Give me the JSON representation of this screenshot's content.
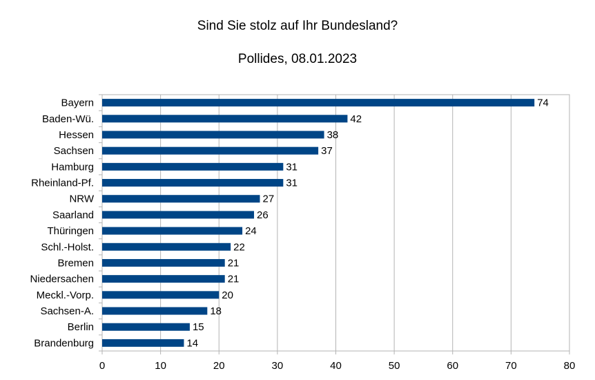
{
  "chart_data": {
    "type": "bar",
    "orientation": "horizontal",
    "title": "Sind Sie stolz auf Ihr Bundesland?",
    "subtitle": "Pollides, 08.01.2023",
    "xlabel": "",
    "ylabel": "",
    "xlim": [
      0,
      80
    ],
    "xticks": [
      0,
      10,
      20,
      30,
      40,
      50,
      60,
      70,
      80
    ],
    "grid": true,
    "legend": "none",
    "bar_color": "#004586",
    "categories": [
      "Bayern",
      "Baden-Wü.",
      "Hessen",
      "Sachsen",
      "Hamburg",
      "Rheinland-Pf.",
      "NRW",
      "Saarland",
      "Thüringen",
      "Schl.-Holst.",
      "Bremen",
      "Niedersachen",
      "Meckl.-Vorp.",
      "Sachsen-A.",
      "Berlin",
      "Brandenburg"
    ],
    "values": [
      74,
      42,
      38,
      37,
      31,
      31,
      27,
      26,
      24,
      22,
      21,
      21,
      20,
      18,
      15,
      14
    ]
  }
}
